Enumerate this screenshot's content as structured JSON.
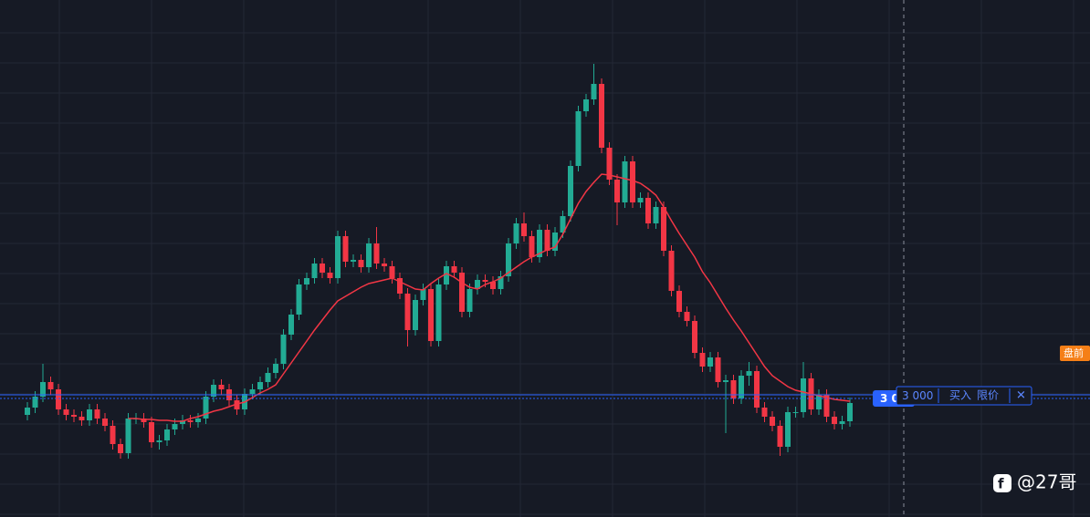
{
  "chart_data": {
    "type": "candlestick",
    "ylim": [
      0,
      567
    ],
    "grid": true,
    "up_color": "#22ab94",
    "down_color": "#f23645",
    "line_color": "#f23645",
    "open": [
      112,
      120,
      132,
      148,
      140,
      118,
      112,
      110,
      106,
      118,
      108,
      100,
      80,
      70,
      108,
      108,
      104,
      82,
      84,
      96,
      102,
      106,
      104,
      108,
      132,
      145,
      140,
      128,
      118,
      135,
      140,
      148,
      158,
      168,
      200,
      222,
      255,
      262,
      278,
      268,
      262,
      308,
      280,
      282,
      274,
      300,
      278,
      275,
      262,
      245,
      205,
      238,
      250,
      193,
      255,
      275,
      268,
      225,
      250,
      260,
      258,
      250,
      264,
      300,
      322,
      308,
      285,
      315,
      292,
      312,
      330,
      385,
      445,
      458,
      475,
      405,
      370,
      345,
      390,
      345,
      350,
      322,
      340,
      292,
      248,
      225,
      215,
      180,
      165,
      175,
      148,
      150,
      130,
      155,
      160,
      120,
      110,
      100,
      77,
      115,
      115,
      152,
      118,
      134,
      110,
      102,
      105
    ],
    "high": [
      126,
      138,
      168,
      154,
      146,
      124,
      118,
      116,
      124,
      124,
      114,
      106,
      86,
      114,
      114,
      114,
      110,
      90,
      102,
      108,
      112,
      112,
      114,
      138,
      151,
      151,
      146,
      134,
      141,
      146,
      154,
      164,
      174,
      206,
      228,
      261,
      268,
      284,
      284,
      274,
      314,
      314,
      288,
      288,
      306,
      318,
      284,
      281,
      268,
      251,
      244,
      256,
      256,
      261,
      281,
      281,
      274,
      256,
      266,
      266,
      264,
      270,
      306,
      328,
      334,
      314,
      321,
      321,
      318,
      336,
      391,
      451,
      464,
      497,
      481,
      411,
      376,
      396,
      396,
      356,
      356,
      346,
      346,
      298,
      254,
      231,
      221,
      186,
      181,
      181,
      156,
      156,
      161,
      170,
      166,
      126,
      116,
      106,
      121,
      121,
      170,
      158,
      140,
      140,
      116,
      111,
      131
    ],
    "low": [
      106,
      114,
      126,
      134,
      112,
      106,
      104,
      100,
      100,
      102,
      94,
      74,
      64,
      64,
      102,
      98,
      76,
      74,
      78,
      90,
      96,
      98,
      98,
      102,
      126,
      134,
      122,
      112,
      112,
      129,
      134,
      142,
      152,
      162,
      194,
      216,
      249,
      256,
      262,
      256,
      256,
      274,
      274,
      268,
      268,
      272,
      269,
      256,
      239,
      187,
      199,
      232,
      187,
      187,
      249,
      262,
      219,
      219,
      244,
      252,
      244,
      244,
      258,
      294,
      302,
      279,
      279,
      286,
      286,
      306,
      324,
      379,
      439,
      452,
      399,
      364,
      320,
      339,
      339,
      339,
      316,
      316,
      286,
      242,
      219,
      209,
      174,
      159,
      159,
      142,
      92,
      124,
      124,
      144,
      114,
      104,
      94,
      67,
      71,
      109,
      109,
      112,
      112,
      104,
      96,
      96,
      99
    ],
    "close": [
      120,
      132,
      148,
      140,
      118,
      112,
      110,
      106,
      118,
      108,
      100,
      80,
      70,
      108,
      108,
      104,
      82,
      84,
      96,
      102,
      106,
      104,
      108,
      132,
      145,
      140,
      128,
      118,
      135,
      140,
      148,
      158,
      168,
      200,
      222,
      255,
      262,
      278,
      268,
      262,
      308,
      280,
      282,
      274,
      300,
      278,
      275,
      262,
      245,
      205,
      238,
      250,
      193,
      255,
      275,
      268,
      225,
      250,
      260,
      258,
      250,
      264,
      300,
      322,
      308,
      285,
      315,
      292,
      312,
      330,
      385,
      445,
      458,
      475,
      405,
      370,
      345,
      390,
      345,
      350,
      322,
      340,
      292,
      248,
      225,
      215,
      180,
      165,
      175,
      148,
      150,
      130,
      155,
      160,
      120,
      110,
      100,
      77,
      115,
      115,
      152,
      118,
      134,
      110,
      102,
      105,
      125
    ],
    "line_values": [
      null,
      null,
      null,
      null,
      null,
      null,
      null,
      null,
      null,
      null,
      null,
      null,
      null,
      108,
      108,
      107,
      107,
      106,
      106,
      105,
      105,
      108,
      110,
      113,
      116,
      118,
      121,
      124,
      126,
      131,
      136,
      140,
      145,
      157,
      169,
      181,
      193,
      205,
      216,
      227,
      237,
      242,
      247,
      252,
      256,
      258,
      260,
      262,
      258,
      254,
      250,
      249,
      256,
      262,
      267,
      263,
      257,
      252,
      250,
      255,
      258,
      262,
      268,
      274,
      280,
      285,
      289,
      293,
      296,
      310,
      327,
      344,
      357,
      367,
      376,
      375,
      373,
      371,
      369,
      366,
      360,
      353,
      340,
      325,
      311,
      298,
      285,
      269,
      257,
      243,
      229,
      216,
      204,
      191,
      178,
      165,
      155,
      149,
      143,
      139,
      137,
      135,
      133,
      131,
      129,
      128,
      127
    ],
    "price_label": "3 0",
    "order": {
      "quantity": "3 000",
      "side": "买入",
      "kind": "限价",
      "close": "✕"
    },
    "session": "盘前",
    "watermark": "@27哥"
  }
}
